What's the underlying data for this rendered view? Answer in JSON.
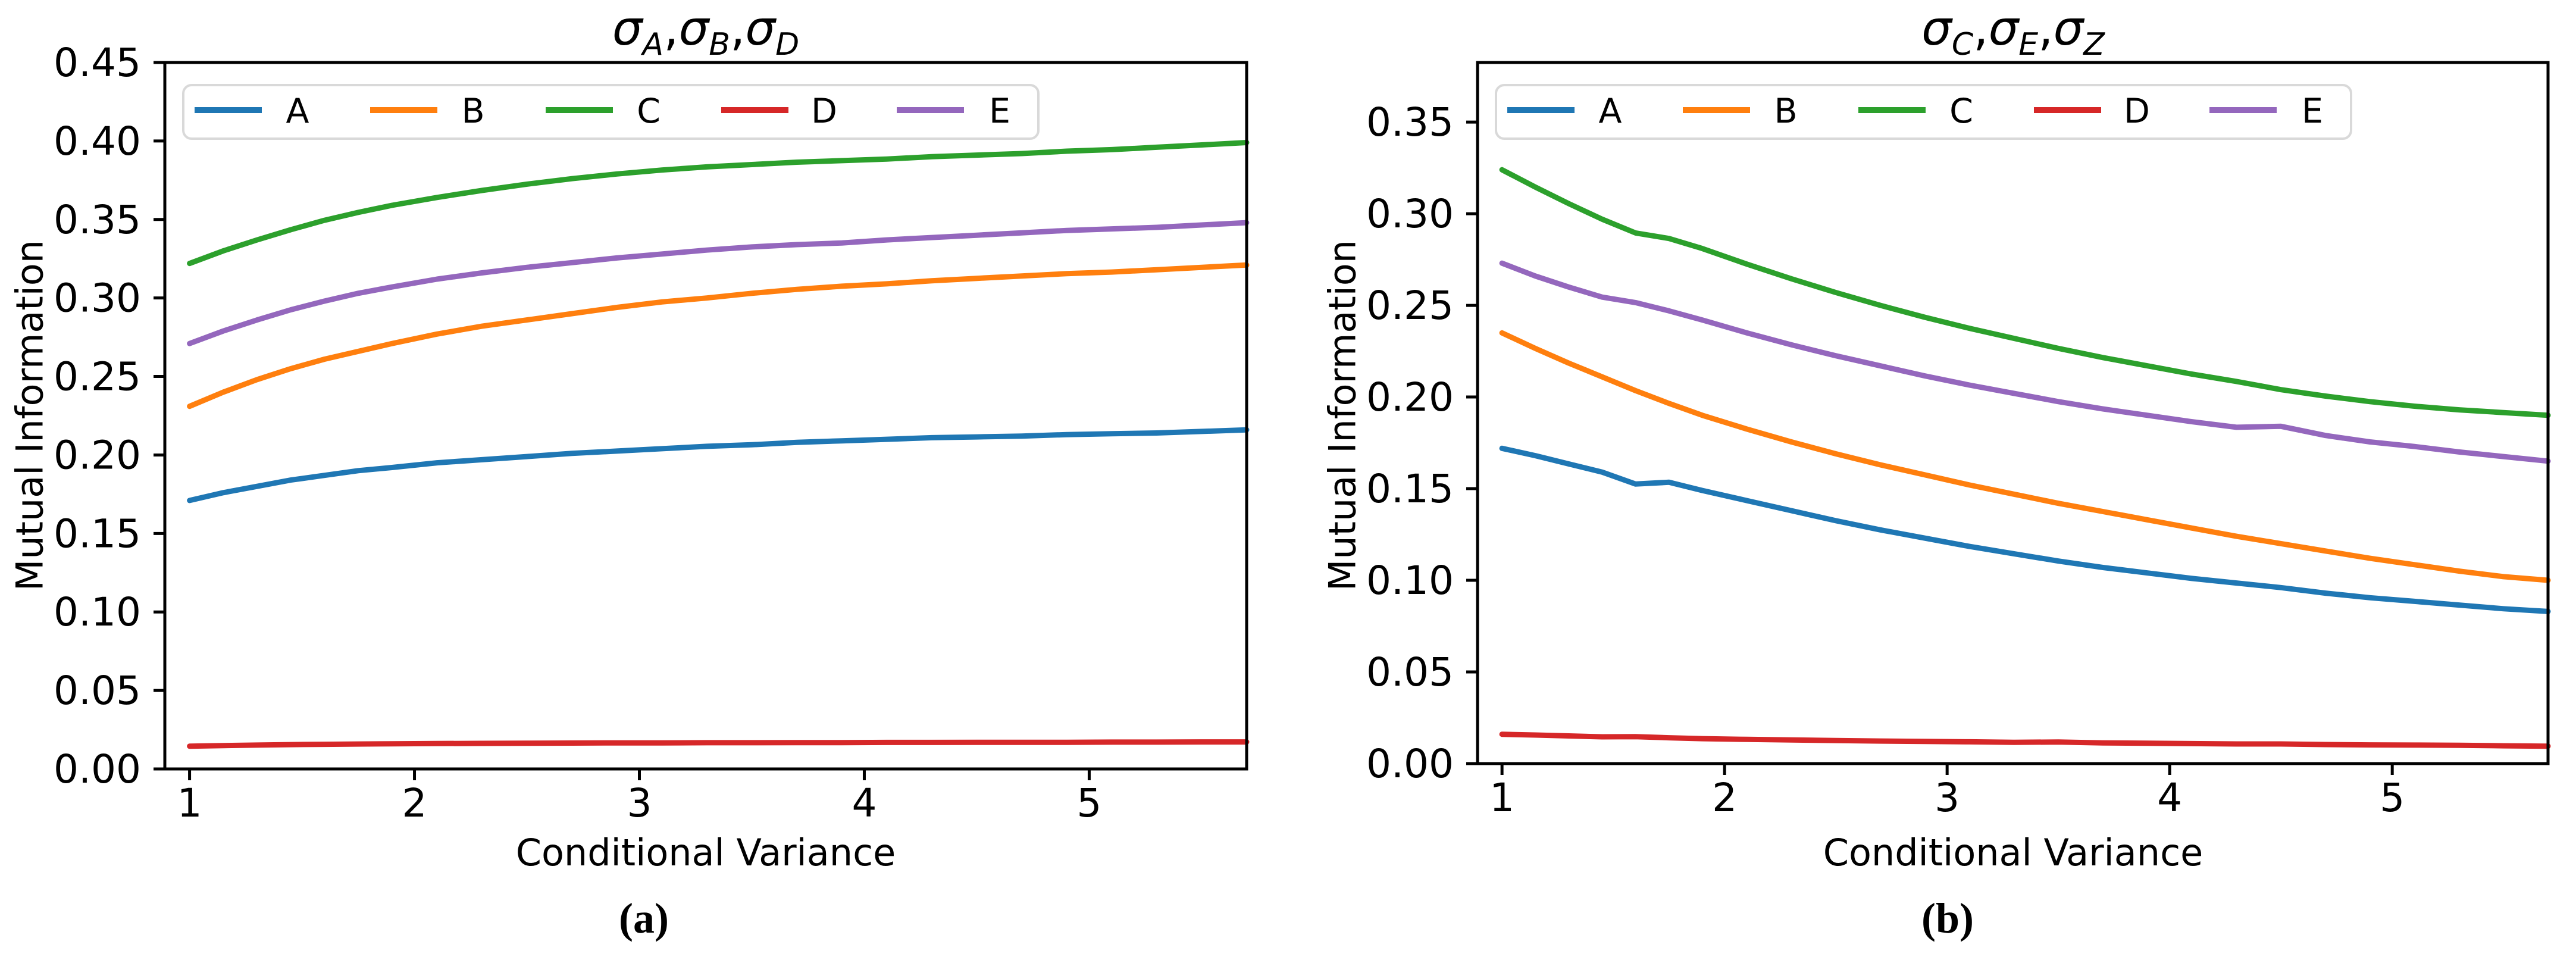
{
  "figure": {
    "background": "#ffffff",
    "text_color": "#000000",
    "spine_color": "#000000",
    "legend_border_color": "#d9d9d9",
    "legend_background": "#ffffff"
  },
  "chart_data": [
    {
      "id": "a",
      "type": "line",
      "title_sigmas": [
        "A",
        "B",
        "D"
      ],
      "caption": "(a)",
      "xlabel": "Conditional Variance",
      "ylabel": "Mutual Information",
      "xlim": [
        0.89,
        5.7
      ],
      "ylim": [
        0.0,
        0.45
      ],
      "xticks": [
        1,
        2,
        3,
        4,
        5
      ],
      "yticks": [
        0.0,
        0.05,
        0.1,
        0.15,
        0.2,
        0.25,
        0.3,
        0.35,
        0.4,
        0.45
      ],
      "grid": false,
      "legend_position": "upper-left-horizontal",
      "legend": [
        "A",
        "B",
        "C",
        "D",
        "E"
      ],
      "x": [
        1.0,
        1.15,
        1.3,
        1.45,
        1.6,
        1.75,
        1.9,
        2.1,
        2.3,
        2.5,
        2.7,
        2.9,
        3.1,
        3.3,
        3.5,
        3.7,
        3.9,
        4.1,
        4.3,
        4.5,
        4.7,
        4.9,
        5.1,
        5.3,
        5.5,
        5.7
      ],
      "series": [
        {
          "name": "A",
          "color": "#1f77b4",
          "values": [
            0.171,
            0.176,
            0.18,
            0.184,
            0.187,
            0.19,
            0.192,
            0.195,
            0.197,
            0.199,
            0.201,
            0.2025,
            0.204,
            0.2055,
            0.2065,
            0.208,
            0.209,
            0.21,
            0.211,
            0.2115,
            0.212,
            0.213,
            0.2135,
            0.214,
            0.215,
            0.216
          ]
        },
        {
          "name": "B",
          "color": "#ff7f0e",
          "values": [
            0.231,
            0.24,
            0.248,
            0.255,
            0.261,
            0.266,
            0.271,
            0.277,
            0.282,
            0.286,
            0.29,
            0.294,
            0.2975,
            0.3,
            0.303,
            0.3055,
            0.3075,
            0.309,
            0.311,
            0.3125,
            0.314,
            0.3155,
            0.3165,
            0.318,
            0.3195,
            0.321
          ]
        },
        {
          "name": "C",
          "color": "#2ca02c",
          "values": [
            0.322,
            0.33,
            0.337,
            0.3435,
            0.3495,
            0.3545,
            0.359,
            0.364,
            0.3685,
            0.3725,
            0.376,
            0.379,
            0.3815,
            0.3835,
            0.385,
            0.3865,
            0.3875,
            0.3885,
            0.39,
            0.391,
            0.392,
            0.3935,
            0.3945,
            0.396,
            0.3975,
            0.399
          ]
        },
        {
          "name": "D",
          "color": "#d62728",
          "values": [
            0.0145,
            0.0149,
            0.0152,
            0.0155,
            0.0157,
            0.0159,
            0.016,
            0.0162,
            0.0163,
            0.0164,
            0.0165,
            0.0166,
            0.0166,
            0.0167,
            0.0167,
            0.0168,
            0.0168,
            0.0169,
            0.0169,
            0.017,
            0.017,
            0.017,
            0.0171,
            0.0171,
            0.0172,
            0.0172
          ]
        },
        {
          "name": "E",
          "color": "#9467bd",
          "values": [
            0.271,
            0.279,
            0.286,
            0.2925,
            0.298,
            0.303,
            0.307,
            0.312,
            0.316,
            0.3195,
            0.3225,
            0.3255,
            0.328,
            0.3305,
            0.3325,
            0.334,
            0.335,
            0.337,
            0.3385,
            0.34,
            0.3415,
            0.343,
            0.344,
            0.345,
            0.3465,
            0.348
          ]
        }
      ]
    },
    {
      "id": "b",
      "type": "line",
      "title_sigmas": [
        "C",
        "E",
        "Z"
      ],
      "caption": "(b)",
      "xlabel": "Conditional Variance",
      "ylabel": "Mutual Information",
      "xlim": [
        0.89,
        5.7
      ],
      "ylim": [
        0.0,
        0.3825
      ],
      "xticks": [
        1,
        2,
        3,
        4,
        5
      ],
      "yticks": [
        0.0,
        0.05,
        0.1,
        0.15,
        0.2,
        0.25,
        0.3,
        0.35
      ],
      "grid": false,
      "legend_position": "upper-left-horizontal",
      "legend": [
        "A",
        "B",
        "C",
        "D",
        "E"
      ],
      "x": [
        1.0,
        1.15,
        1.3,
        1.45,
        1.6,
        1.75,
        1.9,
        2.1,
        2.3,
        2.5,
        2.7,
        2.9,
        3.1,
        3.3,
        3.5,
        3.7,
        3.9,
        4.1,
        4.3,
        4.5,
        4.7,
        4.9,
        5.1,
        5.3,
        5.5,
        5.7
      ],
      "series": [
        {
          "name": "A",
          "color": "#1f77b4",
          "values": [
            0.172,
            0.168,
            0.1635,
            0.159,
            0.1525,
            0.1535,
            0.149,
            0.1435,
            0.138,
            0.1325,
            0.1275,
            0.123,
            0.1185,
            0.1145,
            0.1105,
            0.107,
            0.104,
            0.101,
            0.0985,
            0.096,
            0.093,
            0.0905,
            0.0885,
            0.0865,
            0.0845,
            0.083
          ]
        },
        {
          "name": "B",
          "color": "#ff7f0e",
          "values": [
            0.235,
            0.2265,
            0.2185,
            0.211,
            0.2035,
            0.1965,
            0.19,
            0.1825,
            0.1755,
            0.169,
            0.163,
            0.1575,
            0.152,
            0.147,
            0.142,
            0.1375,
            0.133,
            0.1285,
            0.124,
            0.12,
            0.116,
            0.112,
            0.1085,
            0.105,
            0.102,
            0.1
          ]
        },
        {
          "name": "C",
          "color": "#2ca02c",
          "values": [
            0.324,
            0.3145,
            0.3055,
            0.297,
            0.2895,
            0.2865,
            0.281,
            0.2725,
            0.2645,
            0.257,
            0.25,
            0.2435,
            0.2375,
            0.232,
            0.2265,
            0.2215,
            0.217,
            0.2125,
            0.2085,
            0.204,
            0.2005,
            0.1975,
            0.195,
            0.193,
            0.1915,
            0.19
          ]
        },
        {
          "name": "D",
          "color": "#d62728",
          "values": [
            0.016,
            0.0156,
            0.0151,
            0.0146,
            0.0147,
            0.0141,
            0.0136,
            0.0132,
            0.0129,
            0.0126,
            0.0123,
            0.0121,
            0.0119,
            0.0116,
            0.0118,
            0.0113,
            0.0111,
            0.0109,
            0.0107,
            0.0107,
            0.0104,
            0.0102,
            0.0101,
            0.01,
            0.0097,
            0.0095
          ]
        },
        {
          "name": "E",
          "color": "#9467bd",
          "values": [
            0.273,
            0.266,
            0.26,
            0.2545,
            0.2515,
            0.247,
            0.242,
            0.235,
            0.2285,
            0.2225,
            0.217,
            0.2115,
            0.2065,
            0.202,
            0.1975,
            0.1935,
            0.19,
            0.1865,
            0.1835,
            0.184,
            0.179,
            0.1755,
            0.173,
            0.17,
            0.1675,
            0.165
          ]
        }
      ]
    }
  ]
}
